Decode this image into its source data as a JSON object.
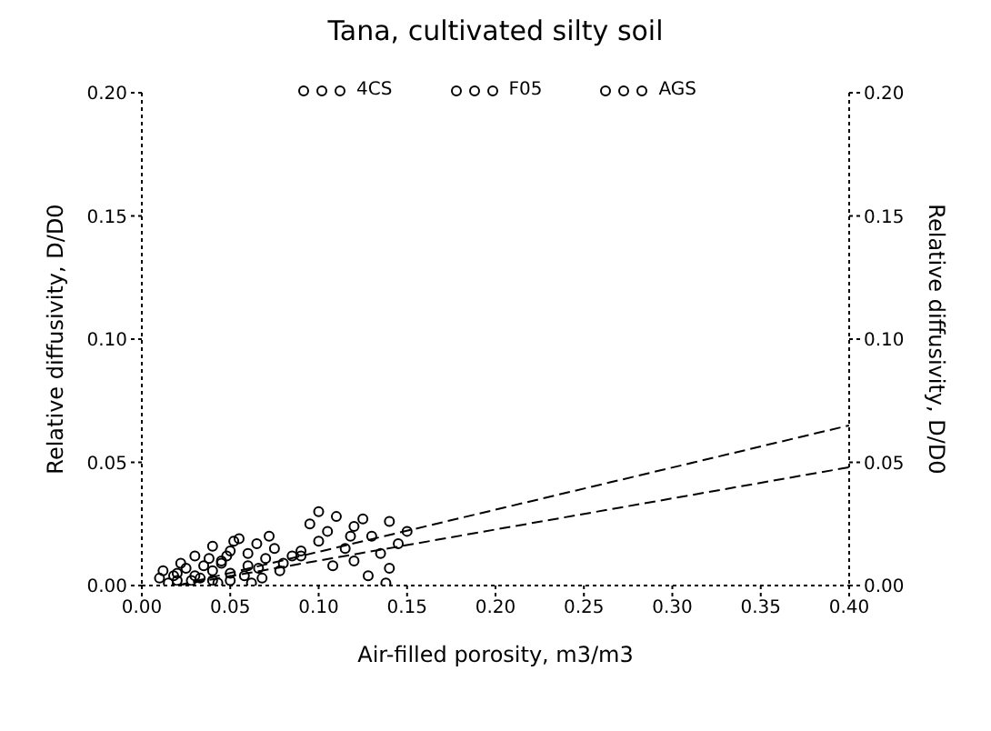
{
  "chart_data": {
    "type": "scatter",
    "title": "Tana, cultivated silty soil",
    "xlabel": "Air-filled porosity, m3/m3",
    "ylabel": "Relative diffusivity, D/D0",
    "y2label": "Relative diffusivity, D/D0",
    "xlim": [
      0,
      0.4
    ],
    "xticks": [
      {
        "value": 0,
        "label": "0.00"
      },
      {
        "value": 0.05,
        "label": "0.05"
      },
      {
        "value": 0.1,
        "label": "0.10"
      },
      {
        "value": 0.15,
        "label": "0.15"
      },
      {
        "value": 0.2,
        "label": "0.20"
      },
      {
        "value": 0.25,
        "label": "0.25"
      },
      {
        "value": 0.3,
        "label": "0.30"
      },
      {
        "value": 0.35,
        "label": "0.35"
      },
      {
        "value": 0.4,
        "label": "0.40"
      }
    ],
    "ylim": [
      0,
      0.2
    ],
    "yticks": [
      {
        "value": 0,
        "label": "0.00"
      },
      {
        "value": 0.05,
        "label": "0.05"
      },
      {
        "value": 0.1,
        "label": "0.10"
      },
      {
        "value": 0.15,
        "label": "0.15"
      },
      {
        "value": 0.2,
        "label": "0.20"
      }
    ],
    "y2lim": [
      0,
      0.2
    ],
    "y2ticks": [
      {
        "value": 0,
        "label": "0.00"
      },
      {
        "value": 0.05,
        "label": "0.05"
      },
      {
        "value": 0.1,
        "label": "0.10"
      },
      {
        "value": 0.15,
        "label": "0.15"
      },
      {
        "value": 0.2,
        "label": "0.20"
      }
    ],
    "grid": false,
    "legend": "top",
    "marker": "circle",
    "series": [
      {
        "name": "4CS",
        "color": "#000000",
        "x": [
          0.01,
          0.015,
          0.02,
          0.02,
          0.025,
          0.03,
          0.03,
          0.035,
          0.04,
          0.04,
          0.045,
          0.05,
          0.012,
          0.022,
          0.028,
          0.038,
          0.018,
          0.033,
          0.043,
          0.048
        ],
        "values": [
          0.003,
          0.001,
          0.005,
          0.002,
          0.007,
          0.004,
          0.012,
          0.008,
          0.006,
          0.002,
          0.009,
          0.005,
          0.006,
          0.009,
          0.002,
          0.011,
          0.004,
          0.003,
          0.001,
          0.012
        ]
      },
      {
        "name": "F05",
        "color": "#000000",
        "x": [
          0.04,
          0.045,
          0.05,
          0.055,
          0.06,
          0.06,
          0.065,
          0.07,
          0.075,
          0.08,
          0.05,
          0.058,
          0.068,
          0.072,
          0.078,
          0.085,
          0.09,
          0.062,
          0.052,
          0.066
        ],
        "values": [
          0.016,
          0.01,
          0.014,
          0.019,
          0.008,
          0.013,
          0.017,
          0.011,
          0.015,
          0.009,
          0.002,
          0.004,
          0.003,
          0.02,
          0.006,
          0.012,
          0.014,
          0.001,
          0.018,
          0.007
        ]
      },
      {
        "name": "AGS",
        "color": "#000000",
        "x": [
          0.09,
          0.095,
          0.1,
          0.1,
          0.105,
          0.11,
          0.115,
          0.12,
          0.12,
          0.125,
          0.13,
          0.135,
          0.14,
          0.14,
          0.145,
          0.15,
          0.108,
          0.128,
          0.138,
          0.118
        ],
        "values": [
          0.012,
          0.025,
          0.03,
          0.018,
          0.022,
          0.028,
          0.015,
          0.024,
          0.01,
          0.027,
          0.02,
          0.013,
          0.026,
          0.007,
          0.017,
          0.022,
          0.008,
          0.004,
          0.001,
          0.02
        ]
      },
      {
        "type": "line",
        "line_style": "dashed",
        "marker": "none",
        "color": "#000000",
        "x": [
          0.02,
          0.4
        ],
        "values": [
          0,
          0.065
        ]
      },
      {
        "type": "line",
        "line_style": "dashed",
        "marker": "none",
        "color": "#000000",
        "x": [
          0.02,
          0.4
        ],
        "values": [
          0,
          0.048
        ]
      }
    ]
  }
}
